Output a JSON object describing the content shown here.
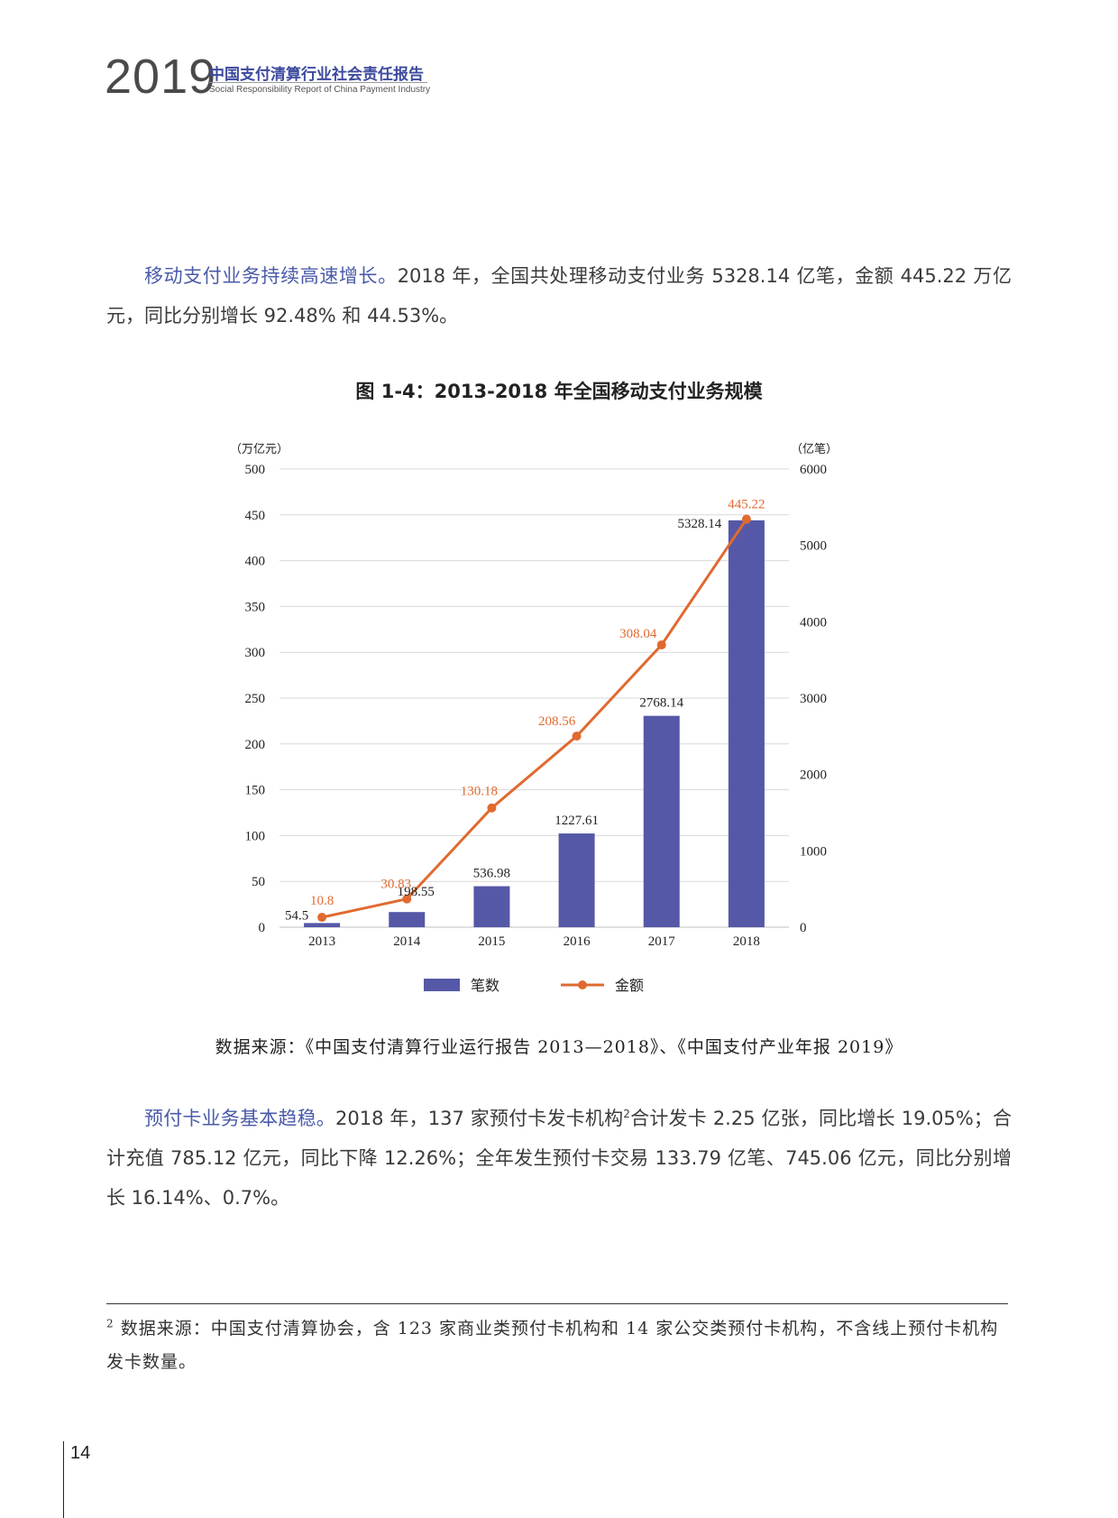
{
  "header": {
    "year": "2019",
    "title": "中国支付清算行业社会责任报告",
    "subtitle": "Social Responsibility Report of China Payment Industry"
  },
  "para1": {
    "lead": "移动支付业务持续高速增长。",
    "text": "2018 年，全国共处理移动支付业务 5328.14 亿笔，金额 445.22 万亿元，同比分别增长 92.48% 和 44.53%。"
  },
  "figure": {
    "title": "图 1-4：2013-2018 年全国移动支付业务规模",
    "source": "数据来源：《中国支付清算行业运行报告 2013—2018》、《中国支付产业年报 2019》"
  },
  "chart_data": {
    "type": "bar+line",
    "categories": [
      "2013",
      "2014",
      "2015",
      "2016",
      "2017",
      "2018"
    ],
    "series": [
      {
        "name": "笔数",
        "type": "bar",
        "axis": "right",
        "values": [
          54.5,
          198.55,
          536.98,
          1227.61,
          2768.14,
          5328.14
        ],
        "labels": [
          "54.5",
          "198.55",
          "536.98",
          "1227.61",
          "2768.14",
          "5328.14"
        ],
        "color": "#5558a6"
      },
      {
        "name": "金额",
        "type": "line",
        "axis": "left",
        "values": [
          10.8,
          30.83,
          130.18,
          208.56,
          308.04,
          445.22
        ],
        "labels": [
          "10.8",
          "30.83",
          "130.18",
          "208.56",
          "308.04",
          "445.22"
        ],
        "color": "#e06a30"
      }
    ],
    "y_left": {
      "unit": "（万亿元）",
      "ylim": [
        0,
        500
      ],
      "ticks": [
        "0",
        "50",
        "100",
        "150",
        "200",
        "250",
        "300",
        "350",
        "400",
        "450",
        "500"
      ]
    },
    "y_right": {
      "unit": "（亿笔）",
      "ylim": [
        0,
        6000
      ],
      "ticks": [
        "0",
        "1000",
        "2000",
        "3000",
        "4000",
        "5000",
        "6000"
      ]
    },
    "grid": true,
    "legend_position": "bottom"
  },
  "para2": {
    "lead": "预付卡业务基本趋稳。",
    "text_a": "2018 年，137 家预付卡发卡机构",
    "sup": "2",
    "text_b": "合计发卡 2.25 亿张，同比增长 19.05%；合计充值 785.12 亿元，同比下降 12.26%；全年发生预付卡交易 133.79 亿笔、745.06 亿元，同比分别增长 16.14%、0.7%。"
  },
  "footnote": {
    "num": "2",
    "text": "数据来源：中国支付清算协会，含 123 家商业类预付卡机构和 14 家公交类预付卡机构，不含线上预付卡机构发卡数量。"
  },
  "page_number": "14"
}
